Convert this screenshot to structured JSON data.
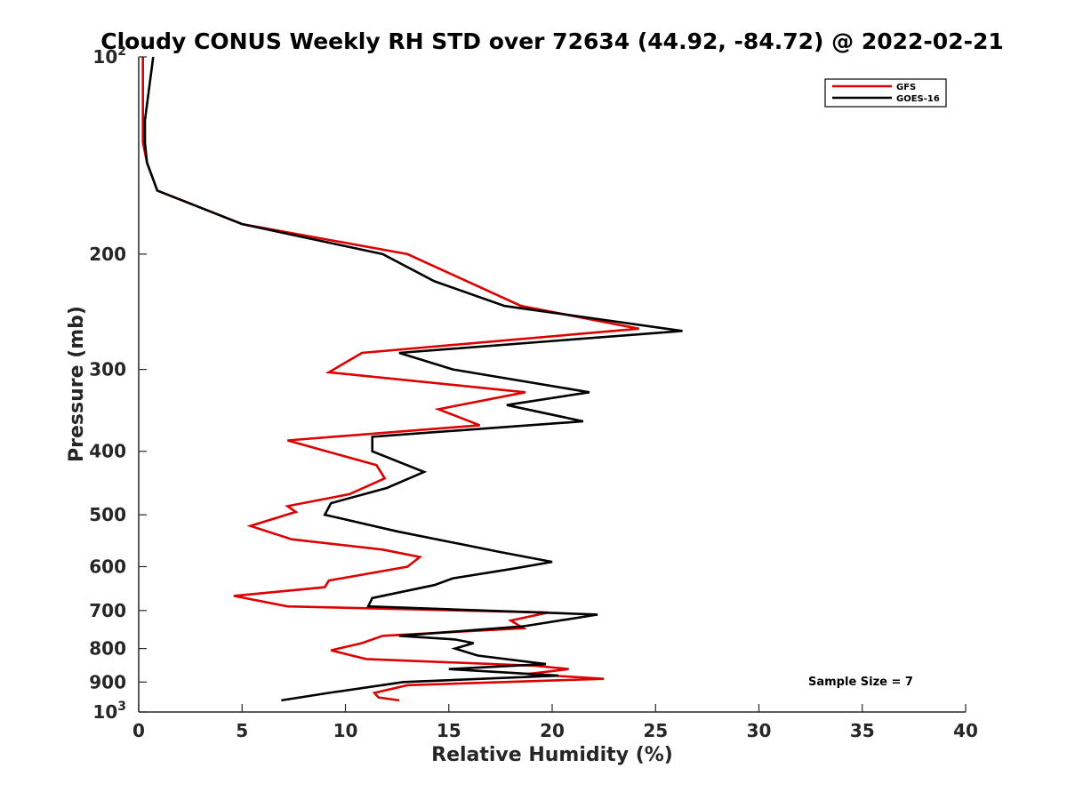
{
  "chart_data": {
    "type": "line",
    "title": "Cloudy CONUS Weekly RH STD over 72634 (44.92, -84.72) @ 2022-02-21",
    "xlabel": "Relative Humidity (%)",
    "ylabel": "Pressure (mb)",
    "xlim": [
      0,
      40
    ],
    "ylim": [
      100,
      1000
    ],
    "y_scale": "log",
    "y_reversed": true,
    "x_ticks": [
      "0",
      "5",
      "10",
      "15",
      "20",
      "25",
      "30",
      "35",
      "40"
    ],
    "y_ticks": [
      {
        "value": 100,
        "label": "10",
        "exp": "2"
      },
      {
        "value": 200,
        "label": "200"
      },
      {
        "value": 300,
        "label": "300"
      },
      {
        "value": 400,
        "label": "400"
      },
      {
        "value": 500,
        "label": "500"
      },
      {
        "value": 600,
        "label": "600"
      },
      {
        "value": 700,
        "label": "700"
      },
      {
        "value": 800,
        "label": "800"
      },
      {
        "value": 900,
        "label": "900"
      },
      {
        "value": 1000,
        "label": "10",
        "exp": "3"
      }
    ],
    "grid": false,
    "legend_position": "top-right",
    "annotation": "Sample Size = 7",
    "series": [
      {
        "name": "GFS",
        "color": "#dd0000",
        "points": [
          [
            0.2,
            100
          ],
          [
            0.2,
            125
          ],
          [
            0.2,
            135
          ],
          [
            0.4,
            145
          ],
          [
            0.9,
            160
          ],
          [
            5.0,
            180
          ],
          [
            13.0,
            200
          ],
          [
            18.5,
            240
          ],
          [
            24.2,
            260
          ],
          [
            10.8,
            283
          ],
          [
            9.2,
            303
          ],
          [
            18.7,
            325
          ],
          [
            14.5,
            345
          ],
          [
            16.5,
            365
          ],
          [
            7.2,
            385
          ],
          [
            11.5,
            420
          ],
          [
            11.9,
            440
          ],
          [
            10.2,
            465
          ],
          [
            7.2,
            485
          ],
          [
            7.6,
            495
          ],
          [
            5.4,
            520
          ],
          [
            7.4,
            545
          ],
          [
            11.8,
            565
          ],
          [
            13.6,
            580
          ],
          [
            13.0,
            600
          ],
          [
            9.2,
            630
          ],
          [
            9.0,
            645
          ],
          [
            4.6,
            665
          ],
          [
            7.2,
            690
          ],
          [
            19.8,
            705
          ],
          [
            18.0,
            725
          ],
          [
            18.6,
            745
          ],
          [
            11.8,
            765
          ],
          [
            10.8,
            785
          ],
          [
            9.3,
            805
          ],
          [
            11.0,
            830
          ],
          [
            19.2,
            850
          ],
          [
            20.8,
            860
          ],
          [
            18.8,
            875
          ],
          [
            22.5,
            890
          ],
          [
            13.0,
            910
          ],
          [
            11.4,
            935
          ],
          [
            11.6,
            950
          ],
          [
            12.6,
            960
          ]
        ]
      },
      {
        "name": "GOES-16",
        "color": "#000000",
        "points": [
          [
            0.7,
            100
          ],
          [
            0.3,
            125
          ],
          [
            0.3,
            135
          ],
          [
            0.4,
            145
          ],
          [
            0.9,
            160
          ],
          [
            5.0,
            180
          ],
          [
            11.8,
            200
          ],
          [
            14.3,
            220
          ],
          [
            17.7,
            240
          ],
          [
            26.3,
            262
          ],
          [
            12.6,
            283
          ],
          [
            15.2,
            300
          ],
          [
            21.8,
            325
          ],
          [
            17.8,
            340
          ],
          [
            21.5,
            360
          ],
          [
            11.3,
            380
          ],
          [
            11.3,
            400
          ],
          [
            13.8,
            430
          ],
          [
            12.0,
            455
          ],
          [
            9.3,
            480
          ],
          [
            9.0,
            500
          ],
          [
            12.5,
            530
          ],
          [
            17.5,
            570
          ],
          [
            20.0,
            590
          ],
          [
            18.0,
            605
          ],
          [
            15.2,
            625
          ],
          [
            14.3,
            640
          ],
          [
            11.3,
            670
          ],
          [
            11.1,
            690
          ],
          [
            22.2,
            710
          ],
          [
            18.6,
            740
          ],
          [
            12.6,
            765
          ],
          [
            15.3,
            775
          ],
          [
            16.2,
            785
          ],
          [
            15.3,
            800
          ],
          [
            16.4,
            820
          ],
          [
            19.7,
            845
          ],
          [
            15.0,
            860
          ],
          [
            20.3,
            880
          ],
          [
            12.8,
            900
          ],
          [
            9.2,
            935
          ],
          [
            6.9,
            960
          ]
        ]
      }
    ]
  }
}
